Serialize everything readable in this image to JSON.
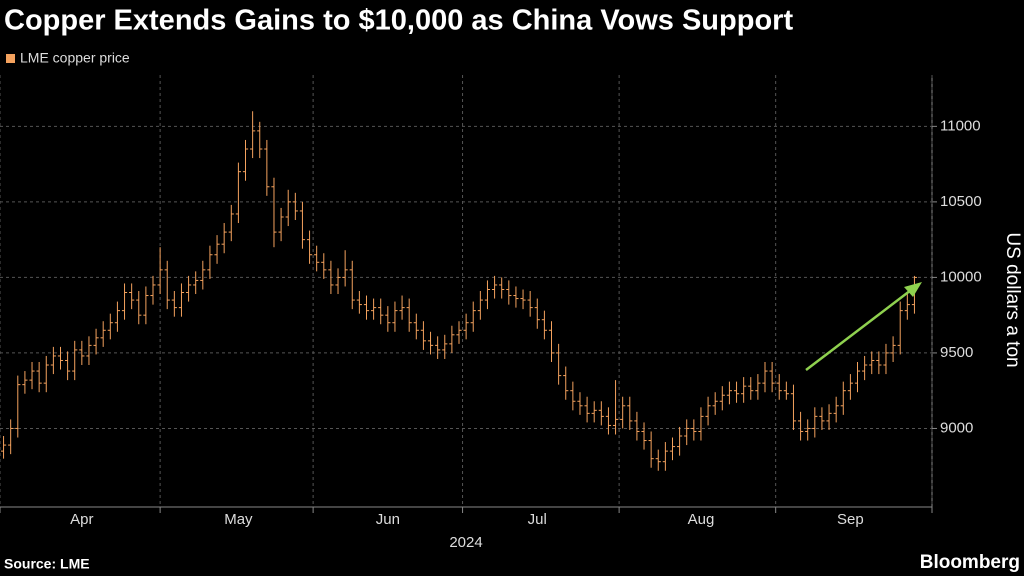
{
  "chart_data": {
    "type": "ohlc",
    "title": "Copper Extends Gains to $10,000 as China Vows Support",
    "legend": "LME copper price",
    "y_label": "US dollars a ton",
    "x_label": "2024",
    "source": "Source: LME",
    "brand": "Bloomberg",
    "color": "#f4a25e",
    "grid": true,
    "ylim": [
      8480,
      11340
    ],
    "yticks": [
      9000,
      9500,
      10000,
      10500,
      11000
    ],
    "categories": [
      null,
      null,
      null,
      null,
      null,
      null,
      null,
      null,
      null,
      null,
      null,
      "Apr",
      null,
      null,
      null,
      null,
      null,
      null,
      null,
      null,
      null,
      null,
      null,
      null,
      null,
      null,
      null,
      null,
      null,
      null,
      null,
      null,
      null,
      "May",
      null,
      null,
      null,
      null,
      null,
      null,
      null,
      null,
      null,
      null,
      null,
      null,
      null,
      null,
      null,
      null,
      null,
      null,
      null,
      null,
      "Jun",
      null,
      null,
      null,
      null,
      null,
      null,
      null,
      null,
      null,
      null,
      null,
      null,
      null,
      null,
      null,
      null,
      null,
      null,
      null,
      null,
      "Jul",
      null,
      null,
      null,
      null,
      null,
      null,
      null,
      null,
      null,
      null,
      null,
      null,
      null,
      null,
      null,
      null,
      null,
      null,
      null,
      null,
      null,
      null,
      "Aug",
      null,
      null,
      null,
      null,
      null,
      null,
      null,
      null,
      null,
      null,
      null,
      null,
      null,
      null,
      null,
      null,
      null,
      null,
      null,
      null,
      "Sep",
      null,
      null,
      null,
      null,
      null,
      null,
      null,
      null,
      null
    ],
    "open": [
      8850,
      8890,
      9000,
      9290,
      9320,
      9380,
      9300,
      9420,
      9480,
      9450,
      9380,
      9520,
      9480,
      9550,
      9600,
      9650,
      9700,
      9780,
      9900,
      9850,
      9750,
      9880,
      9950,
      10050,
      9850,
      9800,
      9900,
      9950,
      9980,
      10050,
      10150,
      10220,
      10300,
      10420,
      10700,
      10850,
      10970,
      10850,
      10600,
      10300,
      10400,
      10500,
      10440,
      10250,
      10150,
      10100,
      10050,
      9950,
      10000,
      10050,
      9850,
      9820,
      9780,
      9800,
      9750,
      9700,
      9780,
      9800,
      9700,
      9650,
      9580,
      9550,
      9520,
      9560,
      9620,
      9650,
      9700,
      9780,
      9850,
      9920,
      9950,
      9920,
      9880,
      9860,
      9850,
      9800,
      9720,
      9650,
      9500,
      9350,
      9250,
      9180,
      9150,
      9100,
      9120,
      9080,
      9020,
      9060,
      9150,
      9050,
      8980,
      8920,
      8800,
      8780,
      8850,
      8880,
      8950,
      9000,
      8980,
      9080,
      9150,
      9180,
      9220,
      9250,
      9230,
      9280,
      9250,
      9300,
      9380,
      9300,
      9250,
      9230,
      9050,
      8980,
      9000,
      9080,
      9050,
      9100,
      9150,
      9250,
      9300,
      9380,
      9420,
      9450,
      9420,
      9500,
      9550,
      9780,
      9820
    ],
    "high": [
      8950,
      9060,
      9350,
      9380,
      9440,
      9440,
      9480,
      9540,
      9540,
      9510,
      9580,
      9580,
      9610,
      9660,
      9710,
      9760,
      9840,
      9960,
      9960,
      9910,
      9940,
      10010,
      10200,
      10110,
      9910,
      9960,
      10010,
      10040,
      10110,
      10210,
      10280,
      10360,
      10480,
      10760,
      10910,
      11100,
      11030,
      10910,
      10660,
      10460,
      10580,
      10560,
      10500,
      10310,
      10210,
      10160,
      10110,
      10060,
      10180,
      10110,
      9910,
      9880,
      9860,
      9860,
      9810,
      9840,
      9880,
      9860,
      9760,
      9710,
      9640,
      9610,
      9620,
      9680,
      9710,
      9760,
      9840,
      9910,
      9980,
      10010,
      10000,
      9980,
      9940,
      9920,
      9910,
      9860,
      9780,
      9710,
      9560,
      9410,
      9310,
      9240,
      9210,
      9180,
      9180,
      9140,
      9320,
      9210,
      9210,
      9110,
      9040,
      8980,
      8860,
      8910,
      8940,
      9010,
      9060,
      9060,
      9140,
      9210,
      9240,
      9280,
      9310,
      9310,
      9340,
      9340,
      9360,
      9440,
      9440,
      9360,
      9310,
      9290,
      9110,
      9060,
      9140,
      9140,
      9160,
      9210,
      9310,
      9360,
      9440,
      9480,
      9510,
      9510,
      9560,
      9610,
      9840,
      9900,
      10010
    ],
    "low": [
      8800,
      8830,
      8940,
      9230,
      9260,
      9240,
      9240,
      9360,
      9390,
      9320,
      9320,
      9420,
      9420,
      9490,
      9540,
      9590,
      9640,
      9720,
      9790,
      9690,
      9690,
      9820,
      9890,
      9790,
      9740,
      9740,
      9840,
      9890,
      9920,
      9990,
      10090,
      10160,
      10240,
      10360,
      10640,
      10790,
      10790,
      10540,
      10200,
      10240,
      10340,
      10380,
      10190,
      10090,
      10040,
      9990,
      9890,
      9890,
      9940,
      9790,
      9760,
      9720,
      9720,
      9690,
      9640,
      9640,
      9720,
      9640,
      9590,
      9520,
      9490,
      9460,
      9460,
      9500,
      9560,
      9590,
      9640,
      9720,
      9790,
      9860,
      9860,
      9820,
      9800,
      9790,
      9740,
      9660,
      9590,
      9440,
      9290,
      9190,
      9120,
      9090,
      9040,
      9040,
      9020,
      8960,
      8960,
      9000,
      8990,
      8920,
      8860,
      8740,
      8720,
      8720,
      8790,
      8820,
      8890,
      8920,
      8920,
      9020,
      9090,
      9120,
      9160,
      9170,
      9170,
      9190,
      9190,
      9240,
      9240,
      9190,
      9190,
      8990,
      8920,
      8920,
      8940,
      8990,
      8990,
      9040,
      9090,
      9190,
      9240,
      9320,
      9360,
      9360,
      9360,
      9440,
      9490,
      9720,
      9760
    ],
    "close": [
      8890,
      9000,
      9290,
      9320,
      9380,
      9300,
      9420,
      9480,
      9450,
      9380,
      9520,
      9480,
      9550,
      9600,
      9650,
      9700,
      9780,
      9900,
      9850,
      9750,
      9880,
      9950,
      10050,
      9850,
      9800,
      9900,
      9950,
      9980,
      10050,
      10150,
      10220,
      10300,
      10420,
      10700,
      10850,
      10970,
      10850,
      10600,
      10300,
      10400,
      10500,
      10440,
      10250,
      10150,
      10100,
      10050,
      9950,
      10000,
      10050,
      9850,
      9820,
      9780,
      9800,
      9750,
      9700,
      9780,
      9800,
      9700,
      9650,
      9580,
      9550,
      9520,
      9560,
      9620,
      9650,
      9700,
      9780,
      9850,
      9920,
      9950,
      9920,
      9880,
      9860,
      9850,
      9800,
      9720,
      9650,
      9500,
      9350,
      9250,
      9180,
      9150,
      9100,
      9120,
      9080,
      9020,
      9060,
      9150,
      9050,
      8980,
      8920,
      8800,
      8780,
      8850,
      8880,
      8950,
      9000,
      8980,
      9080,
      9150,
      9180,
      9220,
      9250,
      9230,
      9280,
      9250,
      9300,
      9380,
      9300,
      9250,
      9230,
      9050,
      8980,
      9000,
      9080,
      9050,
      9100,
      9150,
      9250,
      9300,
      9380,
      9420,
      9450,
      9420,
      9500,
      9550,
      9780,
      9820,
      10000
    ]
  }
}
